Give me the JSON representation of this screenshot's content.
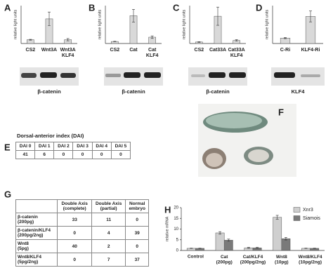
{
  "chart_data": [
    {
      "type": "bar",
      "panel": "A",
      "ylabel": "relative light units",
      "categories": [
        "CS2",
        "Wnt3A",
        "Wnt3A\nKLF4"
      ],
      "values": [
        1,
        6.5,
        1
      ],
      "errors": [
        0.1,
        1.8,
        0.3
      ],
      "ylim": [
        0,
        10
      ],
      "color": "#d9d9d9",
      "blot_label": "β-catenin"
    },
    {
      "type": "bar",
      "panel": "B",
      "ylabel": "relative light units",
      "categories": [
        "CS2",
        "Cat",
        "Cat\nKLF4"
      ],
      "values": [
        0.8,
        11,
        2.5
      ],
      "errors": [
        0.1,
        2.5,
        0.5
      ],
      "ylim": [
        0,
        15
      ],
      "color": "#d9d9d9",
      "blot_label": "β-catenin"
    },
    {
      "type": "bar",
      "panel": "C",
      "ylabel": "relative light units",
      "categories": [
        "CS2",
        "Cat33A",
        "Cat33A\nKLF4"
      ],
      "values": [
        1,
        18,
        2
      ],
      "errors": [
        0.2,
        6,
        0.5
      ],
      "ylim": [
        0,
        25
      ],
      "color": "#d9d9d9",
      "blot_label": "β-catenin"
    },
    {
      "type": "bar",
      "panel": "D",
      "ylabel": "relative light units",
      "categories": [
        "C-Ri",
        "KLF4-Ri"
      ],
      "values": [
        1,
        5
      ],
      "errors": [
        0.1,
        1
      ],
      "ylim": [
        0,
        7
      ],
      "color": "#d9d9d9",
      "blot_label": "KLF4"
    },
    {
      "type": "bar",
      "panel": "H",
      "ylabel": "relative mRNA",
      "categories": [
        "Control",
        "Cat\n(200pg)",
        "Cat/KLF4\n(200pg/2ng)",
        "Wnt8\n(10pg)",
        "Wnt8/KLF4\n(10pg/2ng)"
      ],
      "ylim": [
        0,
        20
      ],
      "yticks": [
        0,
        5,
        10,
        15,
        20
      ],
      "series": [
        {
          "name": "Xnr3",
          "color": "#cfcfcf",
          "values": [
            1,
            8.2,
            1.2,
            15.5,
            1
          ],
          "errors": [
            0.1,
            0.6,
            0.2,
            0.9,
            0.1
          ]
        },
        {
          "name": "Siamois",
          "color": "#7a7a7a",
          "values": [
            1,
            4.8,
            1.2,
            5.5,
            1
          ],
          "errors": [
            0.1,
            0.5,
            0.2,
            0.6,
            0.1
          ]
        }
      ]
    }
  ],
  "table_e": {
    "panel": "E",
    "title": "Dorsal-anterior index (DAI)",
    "header": [
      "DAI 0",
      "DAI 1",
      "DAI 2",
      "DAI 3",
      "DAI 4",
      "DAI 5"
    ],
    "row": [
      41,
      6,
      0,
      0,
      0,
      0
    ]
  },
  "figure_f": {
    "panel": "F"
  },
  "table_g": {
    "panel": "G",
    "columns": [
      "Double Axis\n(complete)",
      "Double Axis\n(partial)",
      "Normal\nembryo"
    ],
    "rows": [
      {
        "label": "β-catenin\n(200pg)",
        "cells": [
          33,
          11,
          0
        ]
      },
      {
        "label": "β-catenin/KLF4\n(200pg/2ng)",
        "cells": [
          0,
          4,
          39
        ]
      },
      {
        "label": "Wnt8\n(5pg)",
        "cells": [
          40,
          2,
          0
        ]
      },
      {
        "label": "Wnt8/KLF4\n(5pg/2ng)",
        "cells": [
          0,
          7,
          37
        ]
      }
    ]
  }
}
